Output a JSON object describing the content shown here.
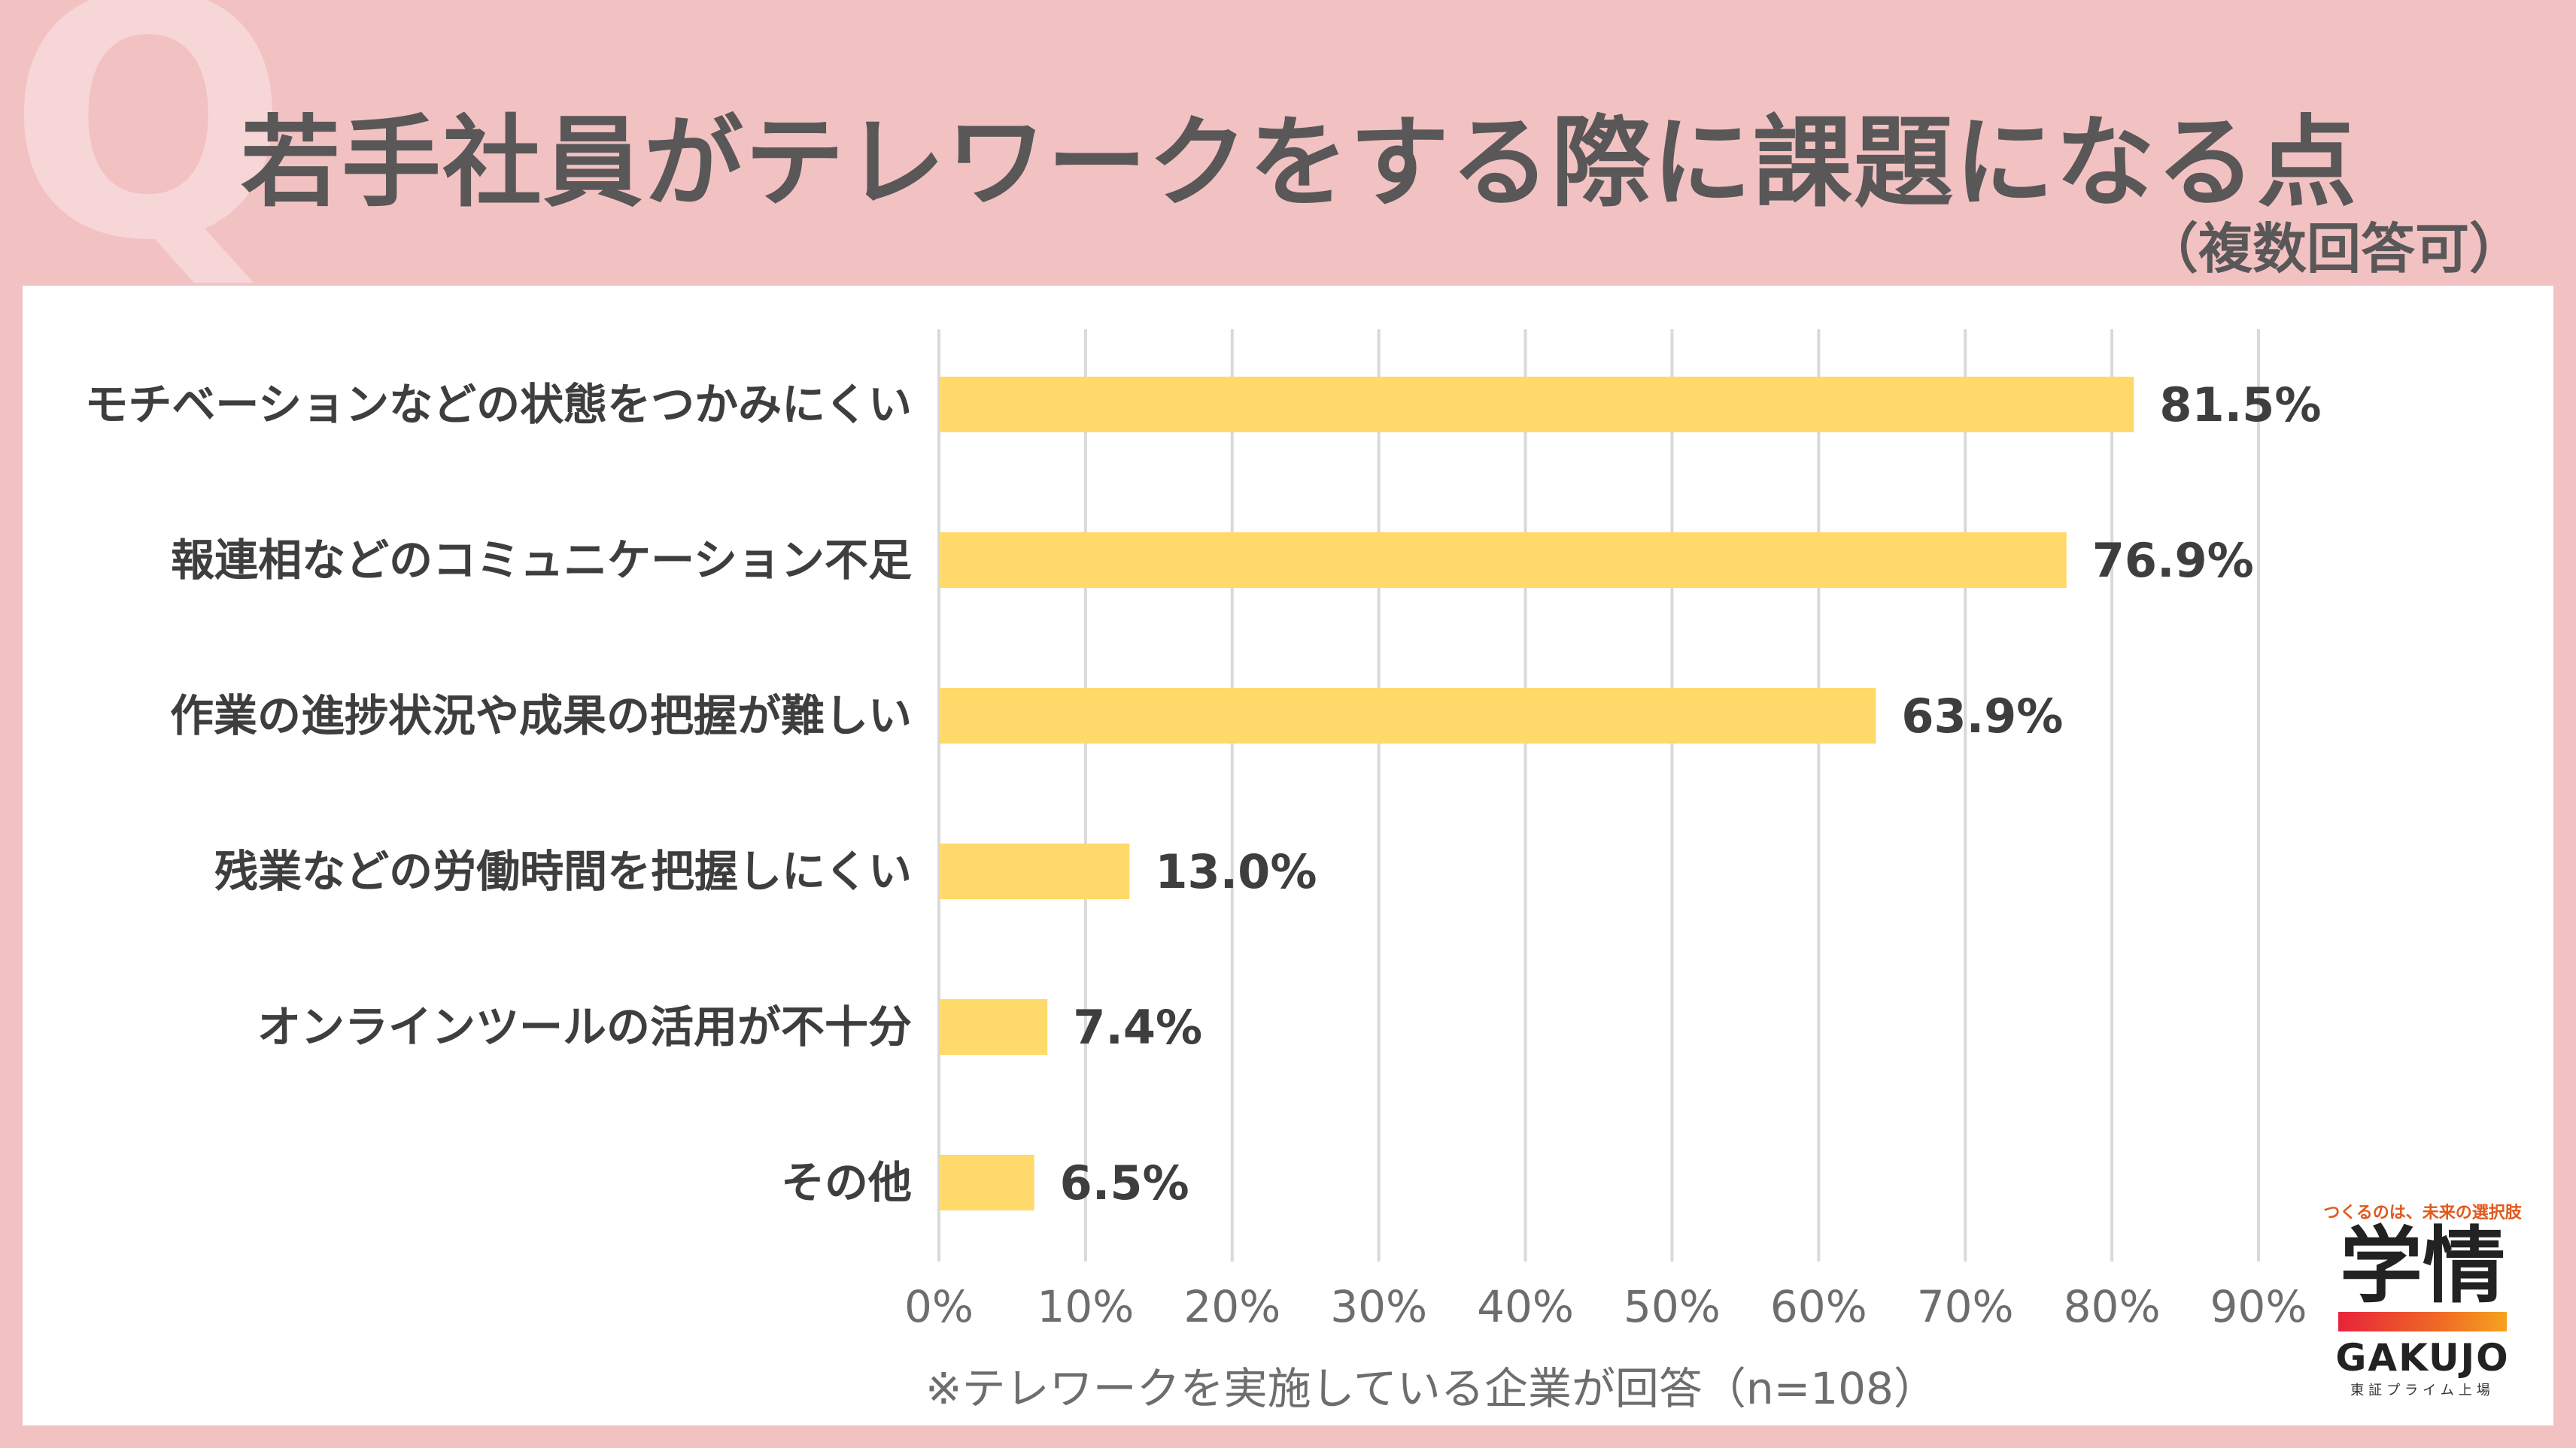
{
  "header": {
    "q_mark": "Q",
    "title": "若手社員がテレワークをする際に課題になる点",
    "subtitle": "（複数回答可）"
  },
  "chart_data": {
    "type": "bar",
    "orientation": "horizontal",
    "categories": [
      "モチベーションなどの状態をつかみにくい",
      "報連相などのコミュニケーション不足",
      "作業の進捗状況や成果の把握が難しい",
      "残業などの労働時間を把握しにくい",
      "オンラインツールの活用が不十分",
      "その他"
    ],
    "values": [
      81.5,
      76.9,
      63.9,
      13.0,
      7.4,
      6.5
    ],
    "value_labels": [
      "81.5%",
      "76.9%",
      "63.9%",
      "13.0%",
      "7.4%",
      "6.5%"
    ],
    "xlim": [
      0,
      90
    ],
    "ticks": [
      0,
      10,
      20,
      30,
      40,
      50,
      60,
      70,
      80,
      90
    ],
    "tick_labels": [
      "0%",
      "10%",
      "20%",
      "30%",
      "40%",
      "50%",
      "60%",
      "70%",
      "80%",
      "90%"
    ],
    "grid": true,
    "bar_color": "#ffd96a",
    "grid_color": "#d9d9d9"
  },
  "footnote": "※テレワークを実施している企業が回答（n=108）",
  "logo": {
    "tagline": "つくるのは、未来の選択肢",
    "mark": "学情",
    "name": "GAKUJO",
    "listing": "東証プライム上場"
  }
}
